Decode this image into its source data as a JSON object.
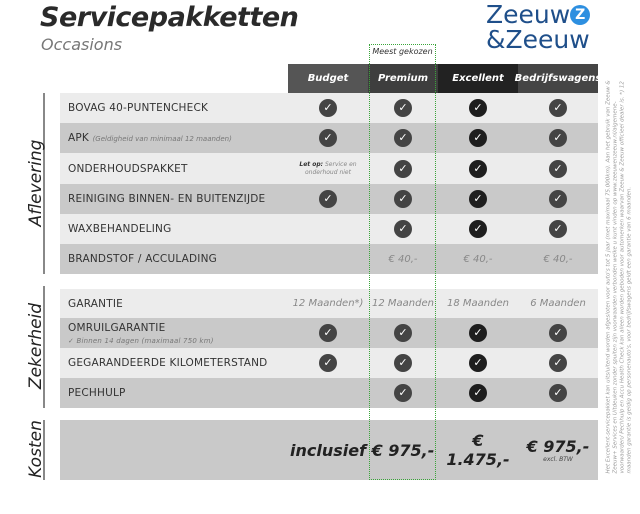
{
  "title": "Servicepakketten",
  "subtitle": "Occasions",
  "logo": {
    "line1": "Zeeuw",
    "line2": "&Zeeuw",
    "brand_color": "#1f4f8a",
    "accent_color": "#2d8fe0"
  },
  "highlight": {
    "label": "Meest gekozen",
    "color": "#3aa53a"
  },
  "columns": [
    {
      "label": "Budget",
      "color": "#555555"
    },
    {
      "label": "Premium",
      "color": "#3e3e3e"
    },
    {
      "label": "Excellent",
      "color": "#222222"
    },
    {
      "label": "Bedrijfswagens",
      "color": "#454545"
    }
  ],
  "sections": [
    {
      "label": "Aflevering",
      "rows": [
        {
          "label": "BOVAG 40-PUNTENCHECK",
          "cells": [
            "check",
            "check",
            "check",
            "check"
          ]
        },
        {
          "label": "APK",
          "note": "(Geldigheid van minimaal 12 maanden)",
          "cells": [
            "check",
            "check",
            "check",
            "check"
          ]
        },
        {
          "label": "ONDERHOUDSPAKKET",
          "cells": [
            {
              "bold": "Let op:",
              "text": "Service en onderhoud niet"
            },
            "check",
            "check",
            "check"
          ]
        },
        {
          "label": "REINIGING BINNEN- EN BUITENZIJDE",
          "cells": [
            "check",
            "check",
            "check",
            "check"
          ]
        },
        {
          "label": "WAXBEHANDELING",
          "cells": [
            "",
            "check",
            "check",
            "check"
          ]
        },
        {
          "label": "BRANDSTOF / ACCULADING",
          "cells": [
            "",
            "€ 40,-",
            "€ 40,-",
            "€ 40,-"
          ]
        }
      ]
    },
    {
      "label": "Zekerheid",
      "rows": [
        {
          "label": "GARANTIE",
          "cells": [
            "12 Maanden*)",
            "12 Maanden",
            "18 Maanden",
            "6 Maanden"
          ]
        },
        {
          "label": "OMRUILGARANTIE",
          "sub": "✓  Binnen 14 dagen (maximaal 750 km)",
          "cells": [
            "check",
            "check",
            "check",
            "check"
          ]
        },
        {
          "label": "GEGARANDEERDE KILOMETERSTAND",
          "cells": [
            "check",
            "check",
            "check",
            "check"
          ]
        },
        {
          "label": "PECHHULP",
          "cells": [
            "",
            "check",
            "check",
            "check"
          ]
        }
      ]
    },
    {
      "label": "Kosten",
      "rows": [
        {
          "label": "",
          "cells": [
            "inclusief",
            "€ 975,-",
            "€ 1.475,-",
            {
              "price": "€ 975,-",
              "sub": "excl. BTW"
            }
          ]
        }
      ]
    }
  ],
  "footnote": "Het Excellent-servicepakket kan uitsluitend worden afgesloten voor auto's tot 5 jaar (met maximaal 75.000km). Aan het gebruik van Zeeuw & Zeeuw+ Services en Uitdeuken zonder spuiten zijn voorwaarden verbonden welke u kunt vinden op www.zeeuwenzeeuw.nl/algemene-voorwaarden/ Pechhulp en Accu Health Check kan alleen worden geboden voor automerken waarvan Zeeuw & Zeeuw officieel dealer is. *) 12 maanden garantie is geldig op personenauto's, voor bedrijfswagens geldt een garantie van 6 maanden."
}
